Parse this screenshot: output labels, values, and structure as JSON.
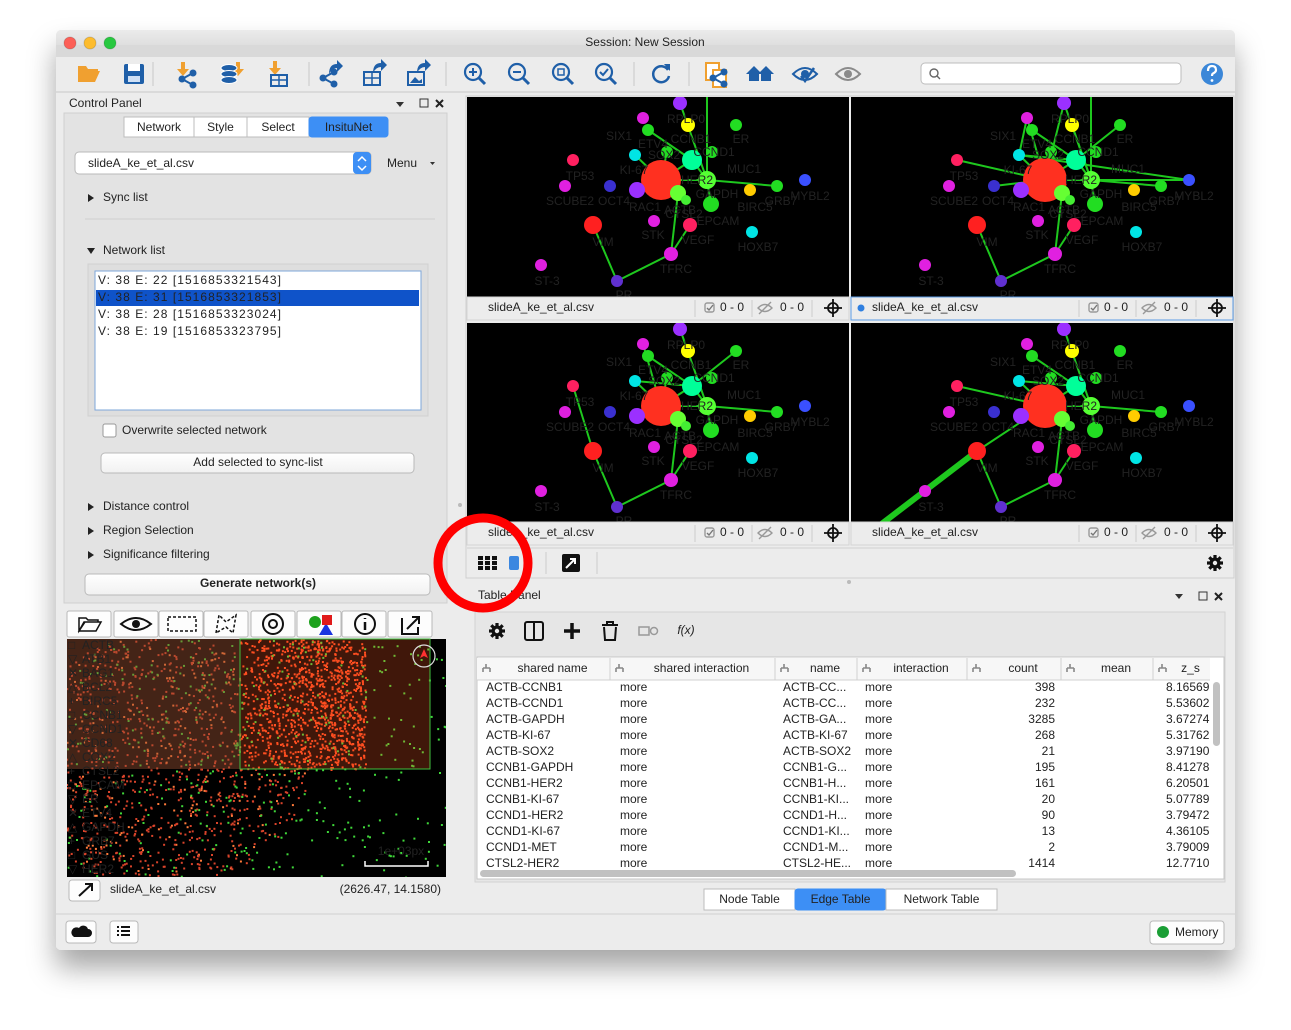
{
  "window": {
    "title": "Session: New Session"
  },
  "control_panel": {
    "title": "Control Panel",
    "tabs": [
      "Network",
      "Style",
      "Select",
      "InsituNet"
    ],
    "active_tab": 3,
    "file": "slideA_ke_et_al.csv",
    "menu": "Menu",
    "sync_list": "Sync list",
    "network_list": "Network list",
    "networks": [
      "V: 38 E: 22 [1516853321543]",
      "V: 38 E: 31 [1516853321853]",
      "V: 38 E: 28 [1516853323024]",
      "V: 38 E: 19 [1516853323795]"
    ],
    "selected_network": 1,
    "overwrite": "Overwrite selected network",
    "add_button": "Add selected to sync-list",
    "sections": [
      "Distance control",
      "Region Selection",
      "Significance filtering"
    ],
    "generate_button": "Generate network(s)"
  },
  "tissue_view": {
    "genes": [
      {
        "marker": "□",
        "name": "ACTB",
        "color": "#ff4a2a"
      },
      {
        "marker": "▽",
        "name": "ATB1",
        "color": "#ff4a2a"
      },
      {
        "marker": "✕",
        "name": "BAG1",
        "color": "#ff4a2a"
      },
      {
        "marker": "△",
        "name": "BCL2",
        "color": "#ff4a2a"
      },
      {
        "marker": "+",
        "name": "BIRC5",
        "color": "#ff4a2a"
      },
      {
        "marker": "□",
        "name": "CCNB1",
        "color": "#5ce03c"
      },
      {
        "marker": "▽",
        "name": "CCND1",
        "color": "#5ce03c"
      },
      {
        "marker": "✕",
        "name": "CD68",
        "color": "#5ce03c"
      },
      {
        "marker": "△",
        "name": "COX2",
        "color": "#5ce03c"
      },
      {
        "marker": "+",
        "name": "CTSL2",
        "color": "#5ce03c"
      },
      {
        "marker": "□",
        "name": "EPCAM",
        "color": "#5ce03c"
      },
      {
        "marker": "▽",
        "name": "ER",
        "color": "#5ce03c"
      },
      {
        "marker": "✕",
        "name": "ETV4",
        "color": "#5ce03c"
      },
      {
        "marker": "△",
        "name": "GAPDH",
        "color": "#5ce03c"
      },
      {
        "marker": "+",
        "name": "GRB7",
        "color": "#5ce03c"
      },
      {
        "marker": "□",
        "name": "GUS",
        "color": "#5ce03c"
      },
      {
        "marker": "▽",
        "name": "HER2",
        "color": "#5ce03c"
      }
    ],
    "scale": "1e+03px",
    "file": "slideA_ke_et_al.csv",
    "coords": "(2626.47, 14.1580)"
  },
  "network_views": {
    "node_labels": [
      "SIX1",
      "RPLP0",
      "ETV4",
      "CCNB1",
      "ER",
      "KI-67",
      "SOX2",
      "CCND1",
      "MUC1",
      "TP53",
      "HER2",
      "GAPDH",
      "MYBL2",
      "SCUBE2",
      "OCT4",
      "RAC1",
      "ACTB",
      "CTSL2",
      "BIRC5",
      "GRB7",
      "EPCAM",
      "VIM",
      "STK",
      "VEGF",
      "HOXB7",
      "TFRC",
      "ST-3",
      "PR"
    ],
    "active_view": 1,
    "views": [
      {
        "file": "slideA_ke_et_al.csv",
        "selected": "0 - 0",
        "hidden": "0 - 0"
      },
      {
        "file": "slideA_ke_et_al.csv",
        "selected": "0 - 0",
        "hidden": "0 - 0"
      },
      {
        "file": "slideA_ke_et_al.csv",
        "selected": "0 - 0",
        "hidden": "0 - 0"
      },
      {
        "file": "slideA_ke_et_al.csv",
        "selected": "0 - 0",
        "hidden": "0 - 0"
      }
    ]
  },
  "table_panel": {
    "title": "Table Panel",
    "formula_button": "f(x)",
    "columns": [
      "shared name",
      "shared interaction",
      "name",
      "interaction",
      "count",
      "mean",
      "z_s"
    ],
    "rows": [
      [
        "ACTB-CCNB1",
        "more",
        "ACTB-CC...",
        "more",
        398,
        "8.16569"
      ],
      [
        "ACTB-CCND1",
        "more",
        "ACTB-CC...",
        "more",
        232,
        "5.53602"
      ],
      [
        "ACTB-GAPDH",
        "more",
        "ACTB-GA...",
        "more",
        3285,
        "3.67274"
      ],
      [
        "ACTB-KI-67",
        "more",
        "ACTB-KI-67",
        "more",
        268,
        "5.31762"
      ],
      [
        "ACTB-SOX2",
        "more",
        "ACTB-SOX2",
        "more",
        21,
        "3.97190"
      ],
      [
        "CCNB1-GAPDH",
        "more",
        "CCNB1-G...",
        "more",
        195,
        "8.41278"
      ],
      [
        "CCNB1-HER2",
        "more",
        "CCNB1-H...",
        "more",
        161,
        "6.20501"
      ],
      [
        "CCNB1-KI-67",
        "more",
        "CCNB1-KI...",
        "more",
        20,
        "5.07789"
      ],
      [
        "CCND1-HER2",
        "more",
        "CCND1-H...",
        "more",
        90,
        "3.79472"
      ],
      [
        "CCND1-KI-67",
        "more",
        "CCND1-KI...",
        "more",
        13,
        "4.36105"
      ],
      [
        "CCND1-MET",
        "more",
        "CCND1-M...",
        "more",
        2,
        "3.79009"
      ],
      [
        "CTSL2-HER2",
        "more",
        "CTSL2-HE...",
        "more",
        1414,
        "12.7710"
      ]
    ],
    "tabs": [
      "Node Table",
      "Edge Table",
      "Network Table"
    ],
    "active_tab": 1
  },
  "status_bar": {
    "memory": "Memory"
  }
}
